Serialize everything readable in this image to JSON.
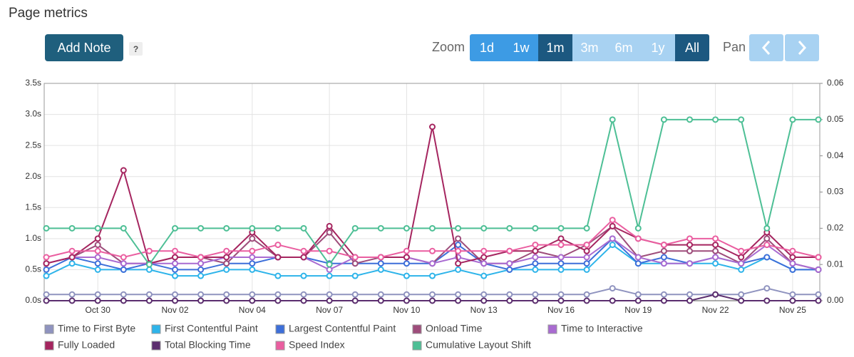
{
  "header": {
    "title": "Page metrics",
    "add_note": "Add Note",
    "help": "?",
    "zoom_label": "Zoom",
    "zoom_buttons": [
      "1d",
      "1w",
      "1m",
      "3m",
      "6m",
      "1y",
      "All"
    ],
    "pan_label": "Pan"
  },
  "chart_data": {
    "type": "line",
    "categories": [
      null,
      null,
      "Oct 30",
      null,
      null,
      "Nov 02",
      null,
      null,
      "Nov 04",
      null,
      null,
      "Nov 07",
      null,
      null,
      "Nov 10",
      null,
      null,
      "Nov 13",
      null,
      null,
      "Nov 16",
      null,
      null,
      "Nov 19",
      null,
      null,
      "Nov 22",
      null,
      null,
      "Nov 25",
      null
    ],
    "ylim": [
      0,
      3.5
    ],
    "yticks": [
      {
        "value": 0,
        "label": "0.0s"
      },
      {
        "value": 0.5,
        "label": "0.5s"
      },
      {
        "value": 1,
        "label": "1.0s"
      },
      {
        "value": 1.5,
        "label": "1.5s"
      },
      {
        "value": 2,
        "label": "2.0s"
      },
      {
        "value": 2.5,
        "label": "2.5s"
      },
      {
        "value": 3,
        "label": "3.0s"
      },
      {
        "value": 3.5,
        "label": "3.5s"
      }
    ],
    "y2lim": [
      0,
      0.06
    ],
    "y2ticks": [
      {
        "value": 0,
        "label": "0.00"
      },
      0.01,
      0.02,
      0.03,
      0.04,
      0.05,
      0.06
    ],
    "grid": true,
    "series": [
      {
        "name": "Time to First Byte",
        "color": "#8f93bf",
        "values": [
          0.1,
          0.1,
          0.1,
          0.1,
          0.1,
          0.1,
          0.1,
          0.1,
          0.1,
          0.1,
          0.1,
          0.1,
          0.1,
          0.1,
          0.1,
          0.1,
          0.1,
          0.1,
          0.1,
          0.1,
          0.1,
          0.1,
          0.2,
          0.1,
          0.1,
          0.1,
          0.1,
          0.1,
          0.2,
          0.1,
          0.1
        ]
      },
      {
        "name": "First Contentful Paint",
        "color": "#2eb4ea",
        "values": [
          0.4,
          0.6,
          0.5,
          0.5,
          0.5,
          0.4,
          0.4,
          0.5,
          0.5,
          0.4,
          0.4,
          0.4,
          0.4,
          0.5,
          0.4,
          0.4,
          0.5,
          0.4,
          0.5,
          0.5,
          0.5,
          0.5,
          0.9,
          0.6,
          0.6,
          0.6,
          0.6,
          0.5,
          0.7,
          0.5,
          0.5
        ]
      },
      {
        "name": "Largest Contentful Paint",
        "color": "#3d6fd9",
        "values": [
          0.5,
          0.7,
          0.6,
          0.5,
          0.6,
          0.5,
          0.5,
          0.6,
          0.6,
          0.7,
          0.7,
          0.6,
          0.6,
          0.6,
          0.6,
          0.6,
          0.9,
          0.6,
          0.5,
          0.6,
          0.6,
          0.6,
          1.0,
          0.6,
          0.7,
          0.6,
          0.7,
          0.6,
          0.7,
          0.5,
          0.5
        ]
      },
      {
        "name": "Onload Time",
        "color": "#9e4d7b",
        "values": [
          0.6,
          0.7,
          0.9,
          0.6,
          0.6,
          0.7,
          0.7,
          0.6,
          1.0,
          0.7,
          0.7,
          1.1,
          0.6,
          0.7,
          0.7,
          0.6,
          1.0,
          0.6,
          0.6,
          0.8,
          0.7,
          0.9,
          1.2,
          0.7,
          0.8,
          0.8,
          0.8,
          0.6,
          1.0,
          0.6,
          0.5
        ]
      },
      {
        "name": "Time to Interactive",
        "color": "#a96bd1",
        "values": [
          0.6,
          0.7,
          0.7,
          0.6,
          0.6,
          0.6,
          0.6,
          0.7,
          0.7,
          0.7,
          0.7,
          0.5,
          0.7,
          0.7,
          0.7,
          0.6,
          0.7,
          0.6,
          0.6,
          0.7,
          0.7,
          0.7,
          1.0,
          0.7,
          0.6,
          0.6,
          0.7,
          0.6,
          0.9,
          0.6,
          0.5
        ]
      },
      {
        "name": "Fully Loaded",
        "color": "#a5255f",
        "values": [
          0.6,
          0.7,
          1.0,
          2.1,
          0.6,
          0.7,
          0.7,
          0.7,
          1.1,
          0.7,
          0.7,
          1.2,
          0.7,
          0.7,
          0.7,
          2.8,
          0.6,
          0.7,
          0.8,
          0.8,
          1.0,
          0.8,
          1.2,
          1.0,
          0.9,
          0.9,
          0.9,
          0.7,
          1.1,
          0.7,
          0.7
        ]
      },
      {
        "name": "Total Blocking Time",
        "color": "#5b2d6e",
        "values": [
          0,
          0,
          0,
          0,
          0,
          0,
          0,
          0,
          0,
          0,
          0,
          0,
          0,
          0,
          0,
          0,
          0,
          0,
          0,
          0,
          0,
          0,
          0,
          0,
          0,
          0,
          0.1,
          0,
          0,
          0,
          0
        ]
      },
      {
        "name": "Speed Index",
        "color": "#ea5ea0",
        "values": [
          0.7,
          0.8,
          0.8,
          0.7,
          0.8,
          0.8,
          0.7,
          0.8,
          0.8,
          0.9,
          0.8,
          0.8,
          0.7,
          0.7,
          0.8,
          0.8,
          0.8,
          0.8,
          0.8,
          0.9,
          0.9,
          0.9,
          1.3,
          1.0,
          0.9,
          1.0,
          1.0,
          0.8,
          0.9,
          0.8,
          0.7
        ]
      },
      {
        "name": "Cumulative Layout Shift",
        "color": "#4dbf95",
        "axis": "y2",
        "values": [
          0.02,
          0.02,
          0.02,
          0.02,
          0.01,
          0.02,
          0.02,
          0.02,
          0.02,
          0.02,
          0.02,
          0.01,
          0.02,
          0.02,
          0.02,
          0.02,
          0.02,
          0.02,
          0.02,
          0.02,
          0.02,
          0.02,
          0.05,
          0.02,
          0.05,
          0.05,
          0.05,
          0.05,
          0.02,
          0.05,
          0.05
        ]
      }
    ]
  }
}
